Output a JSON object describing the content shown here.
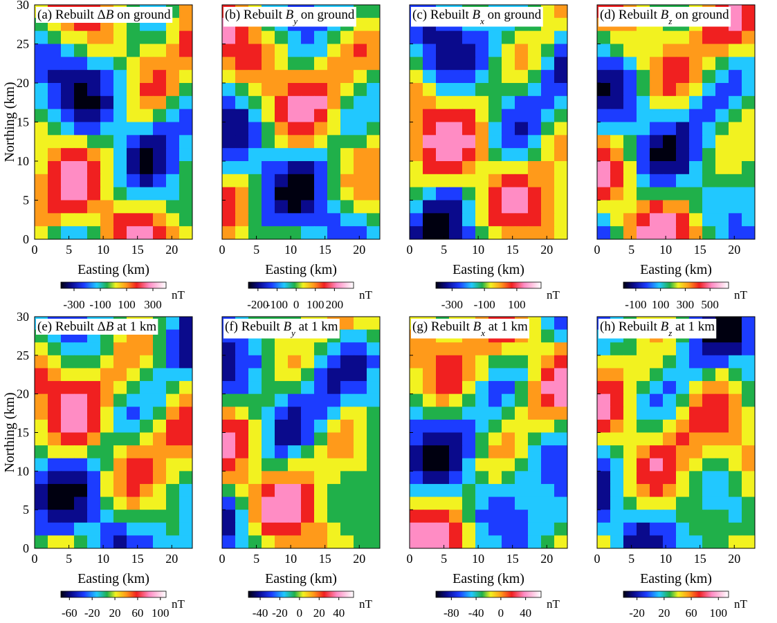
{
  "units": "nT",
  "axis_labels": {
    "x": "Easting (km)",
    "y": "Northing (km)"
  },
  "chart_data": [
    {
      "type": "heatmap",
      "title": "(a) Rebuilt ΔB on ground",
      "title_parts": [
        "(a) Rebuilt ",
        "Δ",
        "B",
        " on ground"
      ],
      "xlabel": "Easting (km)",
      "ylabel": "Northing (km)",
      "xlim": [
        0,
        23
      ],
      "ylim": [
        0,
        30
      ],
      "xticks": [
        0,
        5,
        10,
        15,
        20
      ],
      "yticks": [
        0,
        5,
        10,
        15,
        20,
        25,
        30
      ],
      "colorbar": {
        "ticks": [
          -300,
          -100,
          100,
          300
        ],
        "range": [
          -400,
          400
        ],
        "unit": "nT"
      }
    },
    {
      "type": "heatmap",
      "title": "(b) Rebuilt By on ground",
      "title_parts": [
        "(b)  Rebuilt ",
        "",
        "B",
        "y",
        " on ground"
      ],
      "xlabel": "Easting (km)",
      "ylabel": "",
      "xlim": [
        0,
        23
      ],
      "ylim": [
        0,
        30
      ],
      "xticks": [
        0,
        5,
        10,
        15,
        20
      ],
      "yticks": [
        0,
        5,
        10,
        15,
        20,
        25,
        30
      ],
      "colorbar": {
        "ticks": [
          -200,
          -100,
          0,
          100,
          200
        ],
        "range": [
          -250,
          300
        ],
        "unit": "nT"
      }
    },
    {
      "type": "heatmap",
      "title": "(c) Rebuilt Bx on ground",
      "title_parts": [
        "(c)  Rebuilt ",
        "",
        "B",
        "x",
        " on ground"
      ],
      "xlabel": "Easting (km)",
      "ylabel": "",
      "xlim": [
        0,
        23
      ],
      "ylim": [
        0,
        30
      ],
      "xticks": [
        0,
        5,
        10,
        15,
        20
      ],
      "yticks": [
        0,
        5,
        10,
        15,
        20,
        25,
        30
      ],
      "colorbar": {
        "ticks": [
          -300,
          -100,
          100
        ],
        "range": [
          -400,
          250
        ],
        "unit": "nT"
      }
    },
    {
      "type": "heatmap",
      "title": "(d) Rebuilt Bz on ground",
      "title_parts": [
        "(d)  Rebuilt ",
        "",
        "B",
        "z",
        " on ground"
      ],
      "xlabel": "Easting (km)",
      "ylabel": "",
      "xlim": [
        0,
        23
      ],
      "ylim": [
        0,
        30
      ],
      "xticks": [
        0,
        5,
        10,
        15,
        20
      ],
      "yticks": [
        0,
        5,
        10,
        15,
        20,
        25,
        30
      ],
      "colorbar": {
        "ticks": [
          -100,
          100,
          300,
          500
        ],
        "range": [
          -200,
          650
        ],
        "unit": "nT"
      }
    },
    {
      "type": "heatmap",
      "title": "(e) Rebuilt ΔB at 1 km",
      "title_parts": [
        "(e)  Rebuilt ",
        "Δ",
        "B",
        " at 1 km"
      ],
      "xlabel": "Easting (km)",
      "ylabel": "Northing (km)",
      "xlim": [
        0,
        23
      ],
      "ylim": [
        0,
        30
      ],
      "xticks": [
        0,
        5,
        10,
        15,
        20
      ],
      "yticks": [
        0,
        5,
        10,
        15,
        20,
        25,
        30
      ],
      "colorbar": {
        "ticks": [
          -60,
          -20,
          20,
          60,
          100
        ],
        "range": [
          -75,
          110
        ],
        "unit": "nT"
      }
    },
    {
      "type": "heatmap",
      "title": "(f) Rebuilt By at 1 km",
      "title_parts": [
        "(f)  Rebuilt ",
        "",
        "B",
        "y",
        " at 1 km"
      ],
      "xlabel": "Easting (km)",
      "ylabel": "",
      "xlim": [
        0,
        23
      ],
      "ylim": [
        0,
        30
      ],
      "xticks": [
        0,
        5,
        10,
        15,
        20
      ],
      "yticks": [
        0,
        5,
        10,
        15,
        20,
        25,
        30
      ],
      "colorbar": {
        "ticks": [
          -40,
          -20,
          0,
          20,
          40
        ],
        "range": [
          -52,
          55
        ],
        "unit": "nT"
      }
    },
    {
      "type": "heatmap",
      "title": "(g) Rebuilt Bx at 1 km",
      "title_parts": [
        "(g)  Rebuilt ",
        "",
        "B",
        "x",
        " at 1 km"
      ],
      "xlabel": "Easting (km)",
      "ylabel": "",
      "xlim": [
        0,
        23
      ],
      "ylim": [
        0,
        30
      ],
      "xticks": [
        0,
        5,
        10,
        15,
        20
      ],
      "yticks": [
        0,
        5,
        10,
        15,
        20,
        25,
        30
      ],
      "colorbar": {
        "ticks": [
          -80,
          -40,
          0,
          40
        ],
        "range": [
          -105,
          65
        ],
        "unit": "nT"
      }
    },
    {
      "type": "heatmap",
      "title": "(h) Rebuilt Bz at 1 km",
      "title_parts": [
        "(h)  Rebuilt ",
        "",
        "B",
        "z",
        " at 1 km"
      ],
      "xlabel": "Easting (km)",
      "ylabel": "",
      "xlim": [
        0,
        23
      ],
      "ylim": [
        0,
        30
      ],
      "xticks": [
        0,
        5,
        10,
        15,
        20
      ],
      "yticks": [
        0,
        5,
        10,
        15,
        20,
        25,
        30
      ],
      "colorbar": {
        "ticks": [
          -20,
          20,
          60,
          100
        ],
        "range": [
          -40,
          115
        ],
        "unit": "nT"
      }
    }
  ]
}
